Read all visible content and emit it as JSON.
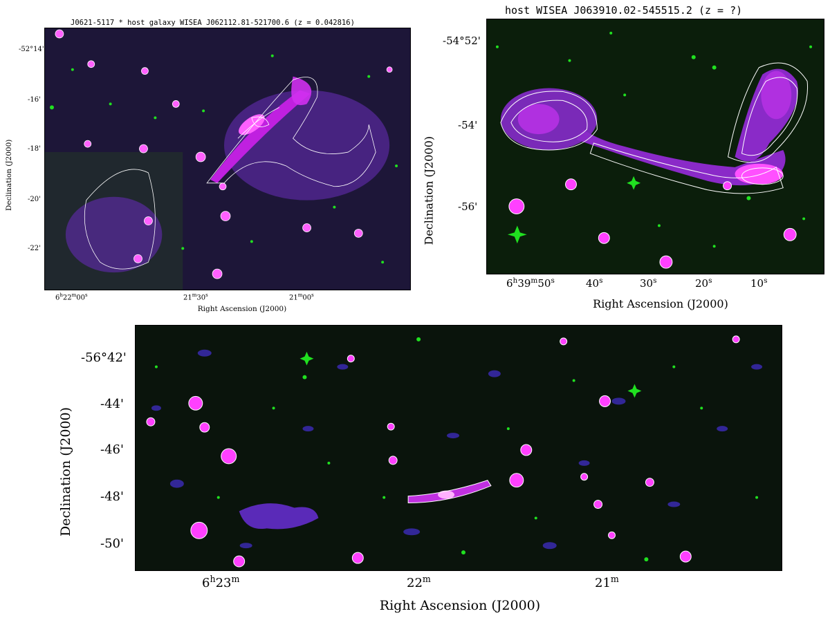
{
  "panels": [
    {
      "title": "J0621-5117 * host galaxy WISEA J062112.81-521700.6 (z = 0.042816)",
      "xlabel": "Right Ascension (J2000)",
      "ylabel": "Declination (J2000)",
      "yticks": [
        "-52°14'",
        "-16'",
        "-18'",
        "-20'",
        "-22'"
      ],
      "xticks": [
        {
          "base": "6",
          "h": "h",
          "m": "22",
          "mu": "m",
          "s": "00",
          "su": "s"
        },
        {
          "base": "21",
          "mu": "m",
          "s": "30",
          "su": "s"
        },
        {
          "base": "21",
          "mu": "m",
          "s": "00",
          "su": "s"
        }
      ]
    },
    {
      "title": "host WISEA J063910.02-545515.2 (z = ?)",
      "xlabel": "Right Ascension (J2000)",
      "ylabel": "Declination (J2000)",
      "yticks": [
        "-54°52'",
        "-54'",
        "-56'"
      ],
      "xticks": [
        {
          "base": "6",
          "h": "h",
          "m": "39",
          "mu": "m",
          "s": "50",
          "su": "s"
        },
        {
          "s": "40",
          "su": "s"
        },
        {
          "s": "30",
          "su": "s"
        },
        {
          "s": "20",
          "su": "s"
        },
        {
          "s": "10",
          "su": "s"
        }
      ]
    },
    {
      "title": "",
      "xlabel": "Right Ascension (J2000)",
      "ylabel": "Declination (J2000)",
      "yticks": [
        "-56°42'",
        "-44'",
        "-46'",
        "-48'",
        "-50'"
      ],
      "xticks": [
        {
          "base": "6",
          "h": "h",
          "m": "23",
          "mu": "m"
        },
        {
          "m": "22",
          "mu": "m"
        },
        {
          "m": "21",
          "mu": "m"
        }
      ]
    }
  ],
  "colors": {
    "background": "#0a140a",
    "radio": "#b020e0",
    "core": "#ff40ff",
    "stars": "#20e020",
    "contour": "#ffffff"
  }
}
